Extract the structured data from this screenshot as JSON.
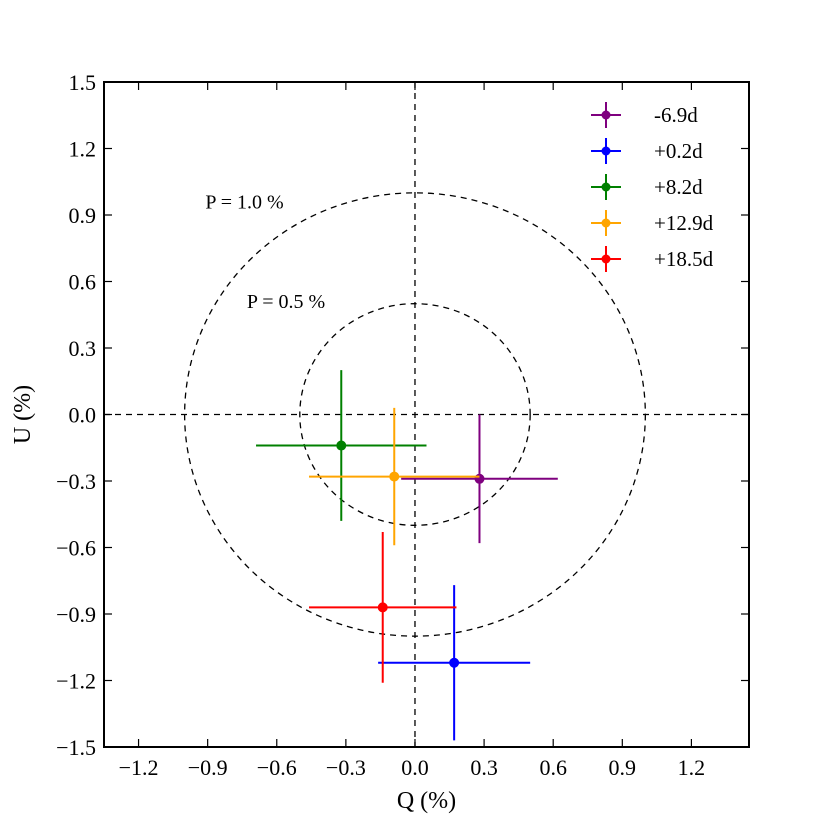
{
  "chart_data": {
    "type": "scatter",
    "title": "",
    "xlabel": "Q (%)",
    "ylabel": "U (%)",
    "xlim": [
      -1.35,
      1.45
    ],
    "ylim": [
      -1.5,
      1.5
    ],
    "xticks": [
      -1.2,
      -0.9,
      -0.6,
      -0.3,
      0.0,
      0.3,
      0.6,
      0.9,
      1.2
    ],
    "yticks": [
      1.5,
      1.2,
      0.9,
      0.6,
      0.3,
      0.0,
      -0.3,
      -0.6,
      -0.9,
      -1.2,
      -1.5
    ],
    "xtick_labels": [
      "−1.2",
      "−0.9",
      "−0.6",
      "−0.3",
      "0.0",
      "0.3",
      "0.6",
      "0.9",
      "1.2"
    ],
    "ytick_labels": [
      "1.5",
      "1.2",
      "0.9",
      "0.6",
      "0.3",
      "0.0",
      "−0.3",
      "−0.6",
      "−0.9",
      "−1.2",
      "−1.5"
    ],
    "reference_lines": {
      "q_zero": 0.0,
      "u_zero": 0.0,
      "style": "dashed"
    },
    "circles": [
      {
        "radius": 1.0,
        "label": "P = 1.0 %",
        "label_q": -0.91,
        "label_u": 0.93
      },
      {
        "radius": 0.5,
        "label": "P = 0.5 %",
        "label_q": -0.73,
        "label_u": 0.48
      }
    ],
    "legend_position": "top-right",
    "series": [
      {
        "name": "-6.9d",
        "color": "#7f007f",
        "q": 0.28,
        "u": -0.29,
        "q_err": 0.34,
        "u_err": 0.29
      },
      {
        "name": "+0.2d",
        "color": "#0000ff",
        "q": 0.17,
        "u": -1.12,
        "q_err": 0.33,
        "u_err": 0.35
      },
      {
        "name": "+8.2d",
        "color": "#008000",
        "q": -0.32,
        "u": -0.14,
        "q_err": 0.37,
        "u_err": 0.34
      },
      {
        "name": "+12.9d",
        "color": "#ffa500",
        "q": -0.09,
        "u": -0.28,
        "q_err": 0.37,
        "u_err": 0.31
      },
      {
        "name": "+18.5d",
        "color": "#ff0000",
        "q": -0.14,
        "u": -0.87,
        "q_err": 0.32,
        "u_err": 0.34
      }
    ]
  }
}
